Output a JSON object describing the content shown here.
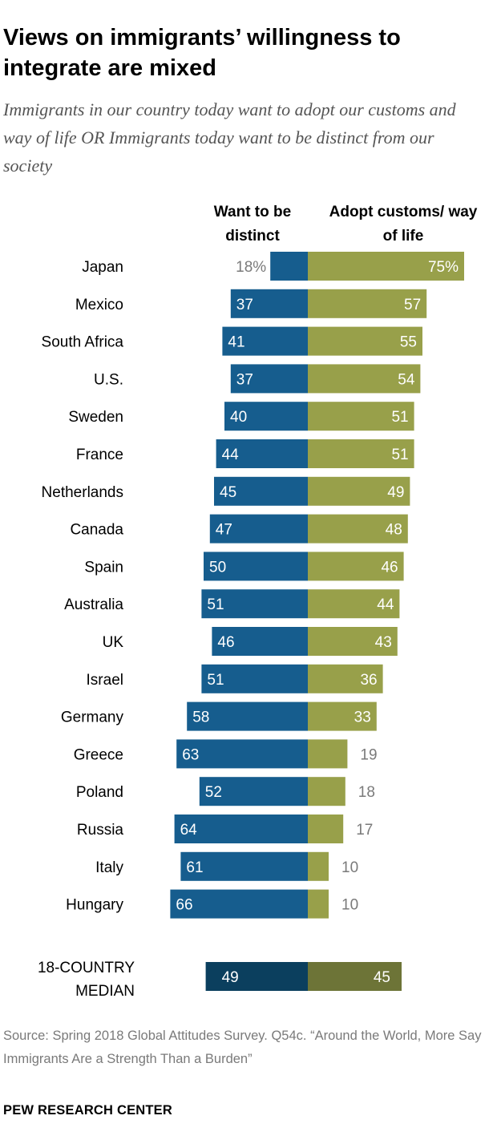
{
  "title": "Views on immigrants’ willingness to integrate are mixed",
  "subtitle": "Immigrants in our country today want to adopt our customs and way of life OR Immigrants today want to be distinct from our society",
  "col_left": "Want to be distinct",
  "col_right": "Adopt customs/ way of life",
  "source": "Source: Spring 2018 Global Attitudes Survey. Q54c. “Around the World, More Say Immigrants Are a Strength Than a Burden”",
  "brand": "PEW RESEARCH CENTER",
  "colors": {
    "distinct": "#165d8e",
    "adopt": "#98a04a",
    "median_distinct": "#0b3f5e",
    "median_adopt": "#6d7437",
    "inside_label": "#ffffff",
    "outside_label": "#7a7a7a"
  },
  "chart_data": {
    "type": "bar",
    "orientation": "horizontal-diverging",
    "categories": [
      "Japan",
      "Mexico",
      "South Africa",
      "U.S.",
      "Sweden",
      "France",
      "Netherlands",
      "Canada",
      "Spain",
      "Australia",
      "UK",
      "Israel",
      "Germany",
      "Greece",
      "Poland",
      "Russia",
      "Italy",
      "Hungary"
    ],
    "series": [
      {
        "name": "Want to be distinct",
        "values": [
          18,
          37,
          41,
          37,
          40,
          44,
          45,
          47,
          50,
          51,
          46,
          51,
          58,
          63,
          52,
          64,
          61,
          66
        ]
      },
      {
        "name": "Adopt customs/ way of life",
        "values": [
          75,
          57,
          55,
          54,
          51,
          51,
          49,
          48,
          46,
          44,
          43,
          36,
          33,
          19,
          18,
          17,
          10,
          10
        ]
      }
    ],
    "value_labels": {
      "distinct": [
        "18%",
        "37",
        "41",
        "37",
        "40",
        "44",
        "45",
        "47",
        "50",
        "51",
        "46",
        "51",
        "58",
        "63",
        "52",
        "64",
        "61",
        "66"
      ],
      "adopt": [
        "75%",
        "57",
        "55",
        "54",
        "51",
        "51",
        "49",
        "48",
        "46",
        "44",
        "43",
        "36",
        "33",
        "19",
        "18",
        "17",
        "10",
        "10"
      ]
    },
    "median": {
      "label_line1": "18-COUNTRY",
      "label_line2": "MEDIAN",
      "distinct": 49,
      "adopt": 45,
      "distinct_label": "49",
      "adopt_label": "45"
    },
    "xlim": [
      0,
      100
    ],
    "units": "%"
  }
}
